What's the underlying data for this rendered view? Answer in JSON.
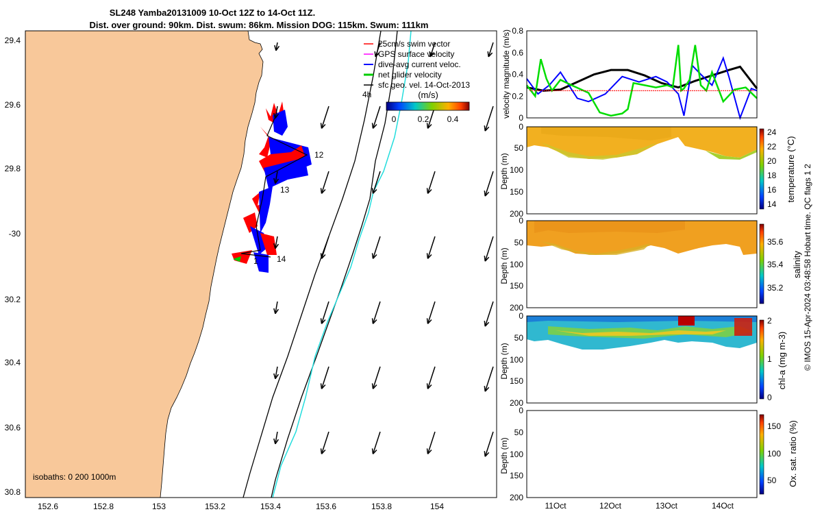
{
  "title": {
    "line1": "SL248 Yamba20131009 10-Oct 12Z to 14-Oct 11Z.",
    "line2": "Dist. over ground: 90km. Dist. swum: 86km. Mission DOG: 115km. Swum: 111km"
  },
  "map": {
    "lon_ticks": [
      "152.6",
      "152.8",
      "153",
      "153.2",
      "153.4",
      "153.6",
      "153.8",
      "154"
    ],
    "lat_ticks": [
      "29.4",
      "29.6",
      "29.8",
      "-30",
      "30.2",
      "30.4",
      "30.6",
      "30.8"
    ],
    "isobaths_label": "isobaths: 0   200  1000m",
    "legend": [
      {
        "label": "25cm/s swim vector",
        "color": "#ff0000"
      },
      {
        "label": "GPS surface velocity",
        "color": "#ff00ff"
      },
      {
        "label": "dive-avg current veloc.",
        "color": "#0000ff"
      },
      {
        "label": "net glider velocity",
        "color": "#00cc00"
      },
      {
        "label": "sfc geo. vel. 14-Oct-2013",
        "color": "#000000"
      }
    ],
    "track_labels": [
      "12",
      "13",
      "14",
      "1",
      "4h"
    ],
    "colorbar": {
      "label": "(m/s)",
      "ticks": [
        "0",
        "0.2",
        "0.4"
      ]
    },
    "colors": {
      "land": "#f8c89a",
      "isobath": "#000000",
      "shelf": "#00dddd"
    }
  },
  "chart_data": [
    {
      "type": "line",
      "ylabel": "velocity magnitude (m/s)",
      "ylim": [
        0,
        0.8
      ],
      "yticks": [
        "0",
        "0.2",
        "0.4",
        "0.6",
        "0.8"
      ],
      "xlim_days": [
        10.4,
        14.5
      ],
      "series": [
        {
          "color": "#000000",
          "x": [
            10.4,
            10.7,
            11.0,
            11.3,
            11.6,
            11.9,
            12.2,
            12.5,
            12.8,
            13.1,
            13.4,
            13.7,
            14.0,
            14.2,
            14.5
          ],
          "values": [
            0.28,
            0.25,
            0.26,
            0.33,
            0.4,
            0.44,
            0.44,
            0.39,
            0.32,
            0.28,
            0.34,
            0.39,
            0.44,
            0.47,
            0.27
          ]
        },
        {
          "color": "#0000ff",
          "x": [
            10.4,
            10.6,
            10.8,
            11.0,
            11.3,
            11.5,
            11.8,
            12.1,
            12.4,
            12.7,
            12.9,
            13.1,
            13.2,
            13.35,
            13.5,
            13.7,
            13.9,
            14.0,
            14.2,
            14.4,
            14.5
          ],
          "values": [
            0.36,
            0.22,
            0.3,
            0.42,
            0.18,
            0.15,
            0.22,
            0.38,
            0.33,
            0.38,
            0.33,
            0.22,
            0.02,
            0.48,
            0.4,
            0.3,
            0.55,
            0.38,
            0.0,
            0.27,
            0.25
          ]
        },
        {
          "color": "#00dd00",
          "x": [
            10.4,
            10.55,
            10.65,
            10.75,
            10.85,
            11.0,
            11.2,
            11.5,
            11.7,
            11.9,
            12.1,
            12.2,
            12.3,
            12.5,
            12.7,
            12.9,
            13.0,
            13.1,
            13.15,
            13.2,
            13.3,
            13.4,
            13.5,
            13.6,
            13.7,
            13.9,
            14.1,
            14.3,
            14.5
          ],
          "values": [
            0.3,
            0.2,
            0.54,
            0.36,
            0.25,
            0.35,
            0.3,
            0.23,
            0.05,
            0.02,
            0.04,
            0.08,
            0.32,
            0.3,
            0.28,
            0.3,
            0.28,
            0.67,
            0.25,
            0.27,
            0.35,
            0.67,
            0.3,
            0.25,
            0.42,
            0.15,
            0.26,
            0.28,
            0.18
          ]
        },
        {
          "color": "#ff0000",
          "x": [
            10.45,
            14.45
          ],
          "values": [
            0.25,
            0.25
          ]
        }
      ]
    },
    {
      "type": "heatmap",
      "ylabel": "Depth (m)",
      "yticks": [
        "0",
        "50",
        "100",
        "150",
        "200"
      ],
      "ylim": [
        200,
        0
      ],
      "colorbar_label": "temperature (°C)",
      "colorbar_ticks": [
        "14",
        "16",
        "18",
        "20",
        "22",
        "24"
      ]
    },
    {
      "type": "heatmap",
      "ylabel": "Depth (m)",
      "yticks": [
        "0",
        "50",
        "100",
        "150",
        "200"
      ],
      "ylim": [
        200,
        0
      ],
      "colorbar_label": "salinity",
      "colorbar_ticks": [
        "35.2",
        "35.4",
        "35.6"
      ]
    },
    {
      "type": "heatmap",
      "ylabel": "Depth (m)",
      "yticks": [
        "0",
        "50",
        "100",
        "150",
        "200"
      ],
      "ylim": [
        200,
        0
      ],
      "colorbar_label": "chl-a (mg m-3)",
      "colorbar_ticks": [
        "0",
        "1",
        "2"
      ]
    },
    {
      "type": "heatmap",
      "ylabel": "Depth (m)",
      "yticks": [
        "0",
        "50",
        "100",
        "150",
        "200"
      ],
      "ylim": [
        200,
        0
      ],
      "colorbar_label": "Ox. sat. ratio (%)",
      "colorbar_ticks": [
        "50",
        "100",
        "150"
      ]
    }
  ],
  "time_axis": [
    "11Oct",
    "12Oct",
    "13Oct",
    "14Oct"
  ],
  "side_note": "© IMOS 15-Apr-2024 03:48:58 Hobart time. QC flags 1  2"
}
